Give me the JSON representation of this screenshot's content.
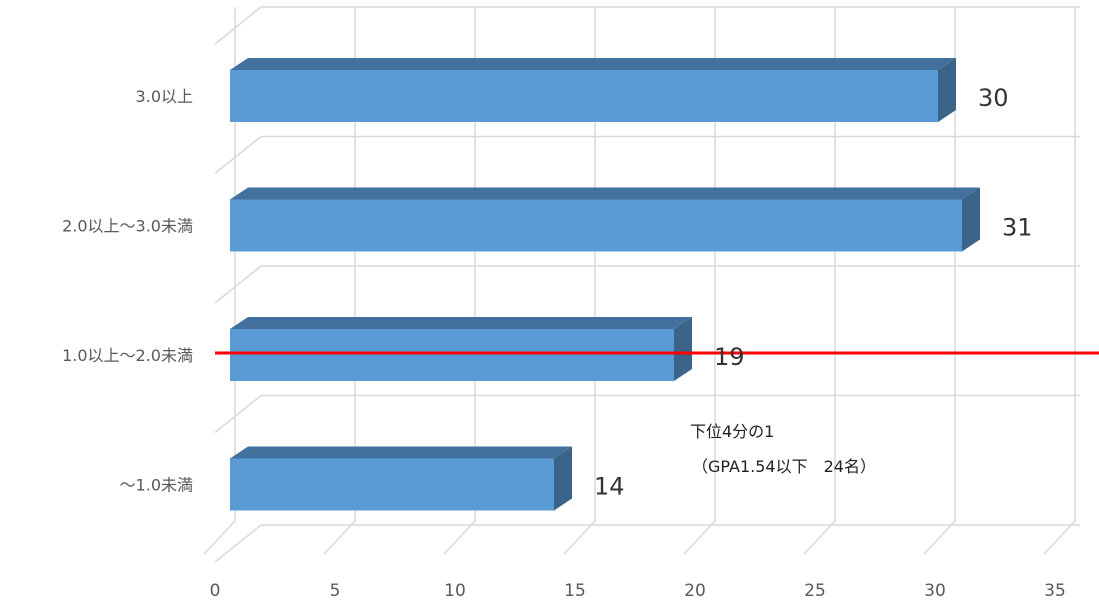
{
  "chart_data": {
    "type": "bar",
    "orientation": "horizontal",
    "style": "3d",
    "categories": [
      "3.0以上",
      "2.0以上～3.0未満",
      "1.0以上～2.0未満",
      "～1.0未満"
    ],
    "values": [
      30,
      31,
      19,
      14
    ],
    "xlim": [
      0,
      35
    ],
    "x_ticks": [
      "0",
      "5",
      "10",
      "15",
      "20",
      "25",
      "30",
      "35"
    ],
    "grid": true,
    "legend": "none",
    "bar_color": "#5B9BD5",
    "bar_top_color": "#41719C",
    "bar_side_color": "#3A6589",
    "reference_line": {
      "color": "#FF0000",
      "category": "1.0以上～2.0未満"
    },
    "annotation": {
      "line1": "下位4分の1",
      "line2": "（GPA1.54以下　24名）"
    }
  }
}
